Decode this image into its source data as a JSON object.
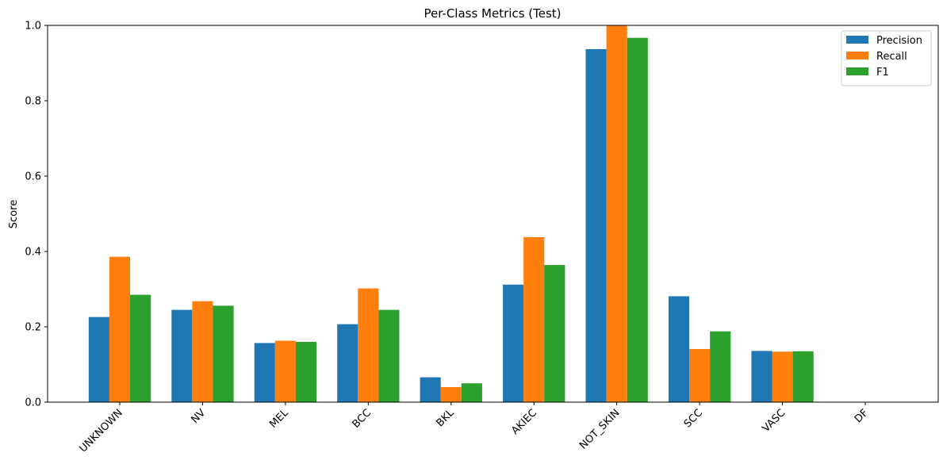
{
  "chart_data": {
    "type": "bar",
    "title": "Per-Class Metrics (Test)",
    "xlabel": "",
    "ylabel": "Score",
    "ylim": [
      0,
      1
    ],
    "yticks": [
      "0.0",
      "0.2",
      "0.4",
      "0.6",
      "0.8",
      "1.0"
    ],
    "categories": [
      "UNKNOWN",
      "NV",
      "MEL",
      "BCC",
      "BKL",
      "AKIEC",
      "NOT_SKIN",
      "SCC",
      "VASC",
      "DF"
    ],
    "series": [
      {
        "name": "Precision",
        "color": "#1f77b4",
        "values": [
          0.226,
          0.245,
          0.157,
          0.207,
          0.066,
          0.312,
          0.937,
          0.281,
          0.136,
          0.0
        ]
      },
      {
        "name": "Recall",
        "color": "#ff7f0e",
        "values": [
          0.386,
          0.268,
          0.163,
          0.302,
          0.04,
          0.438,
          1.0,
          0.141,
          0.134,
          0.0
        ]
      },
      {
        "name": "F1",
        "color": "#2ca02c",
        "values": [
          0.285,
          0.256,
          0.16,
          0.245,
          0.05,
          0.364,
          0.967,
          0.188,
          0.135,
          0.0
        ]
      }
    ],
    "legend_position": "top-right",
    "grid": false
  }
}
